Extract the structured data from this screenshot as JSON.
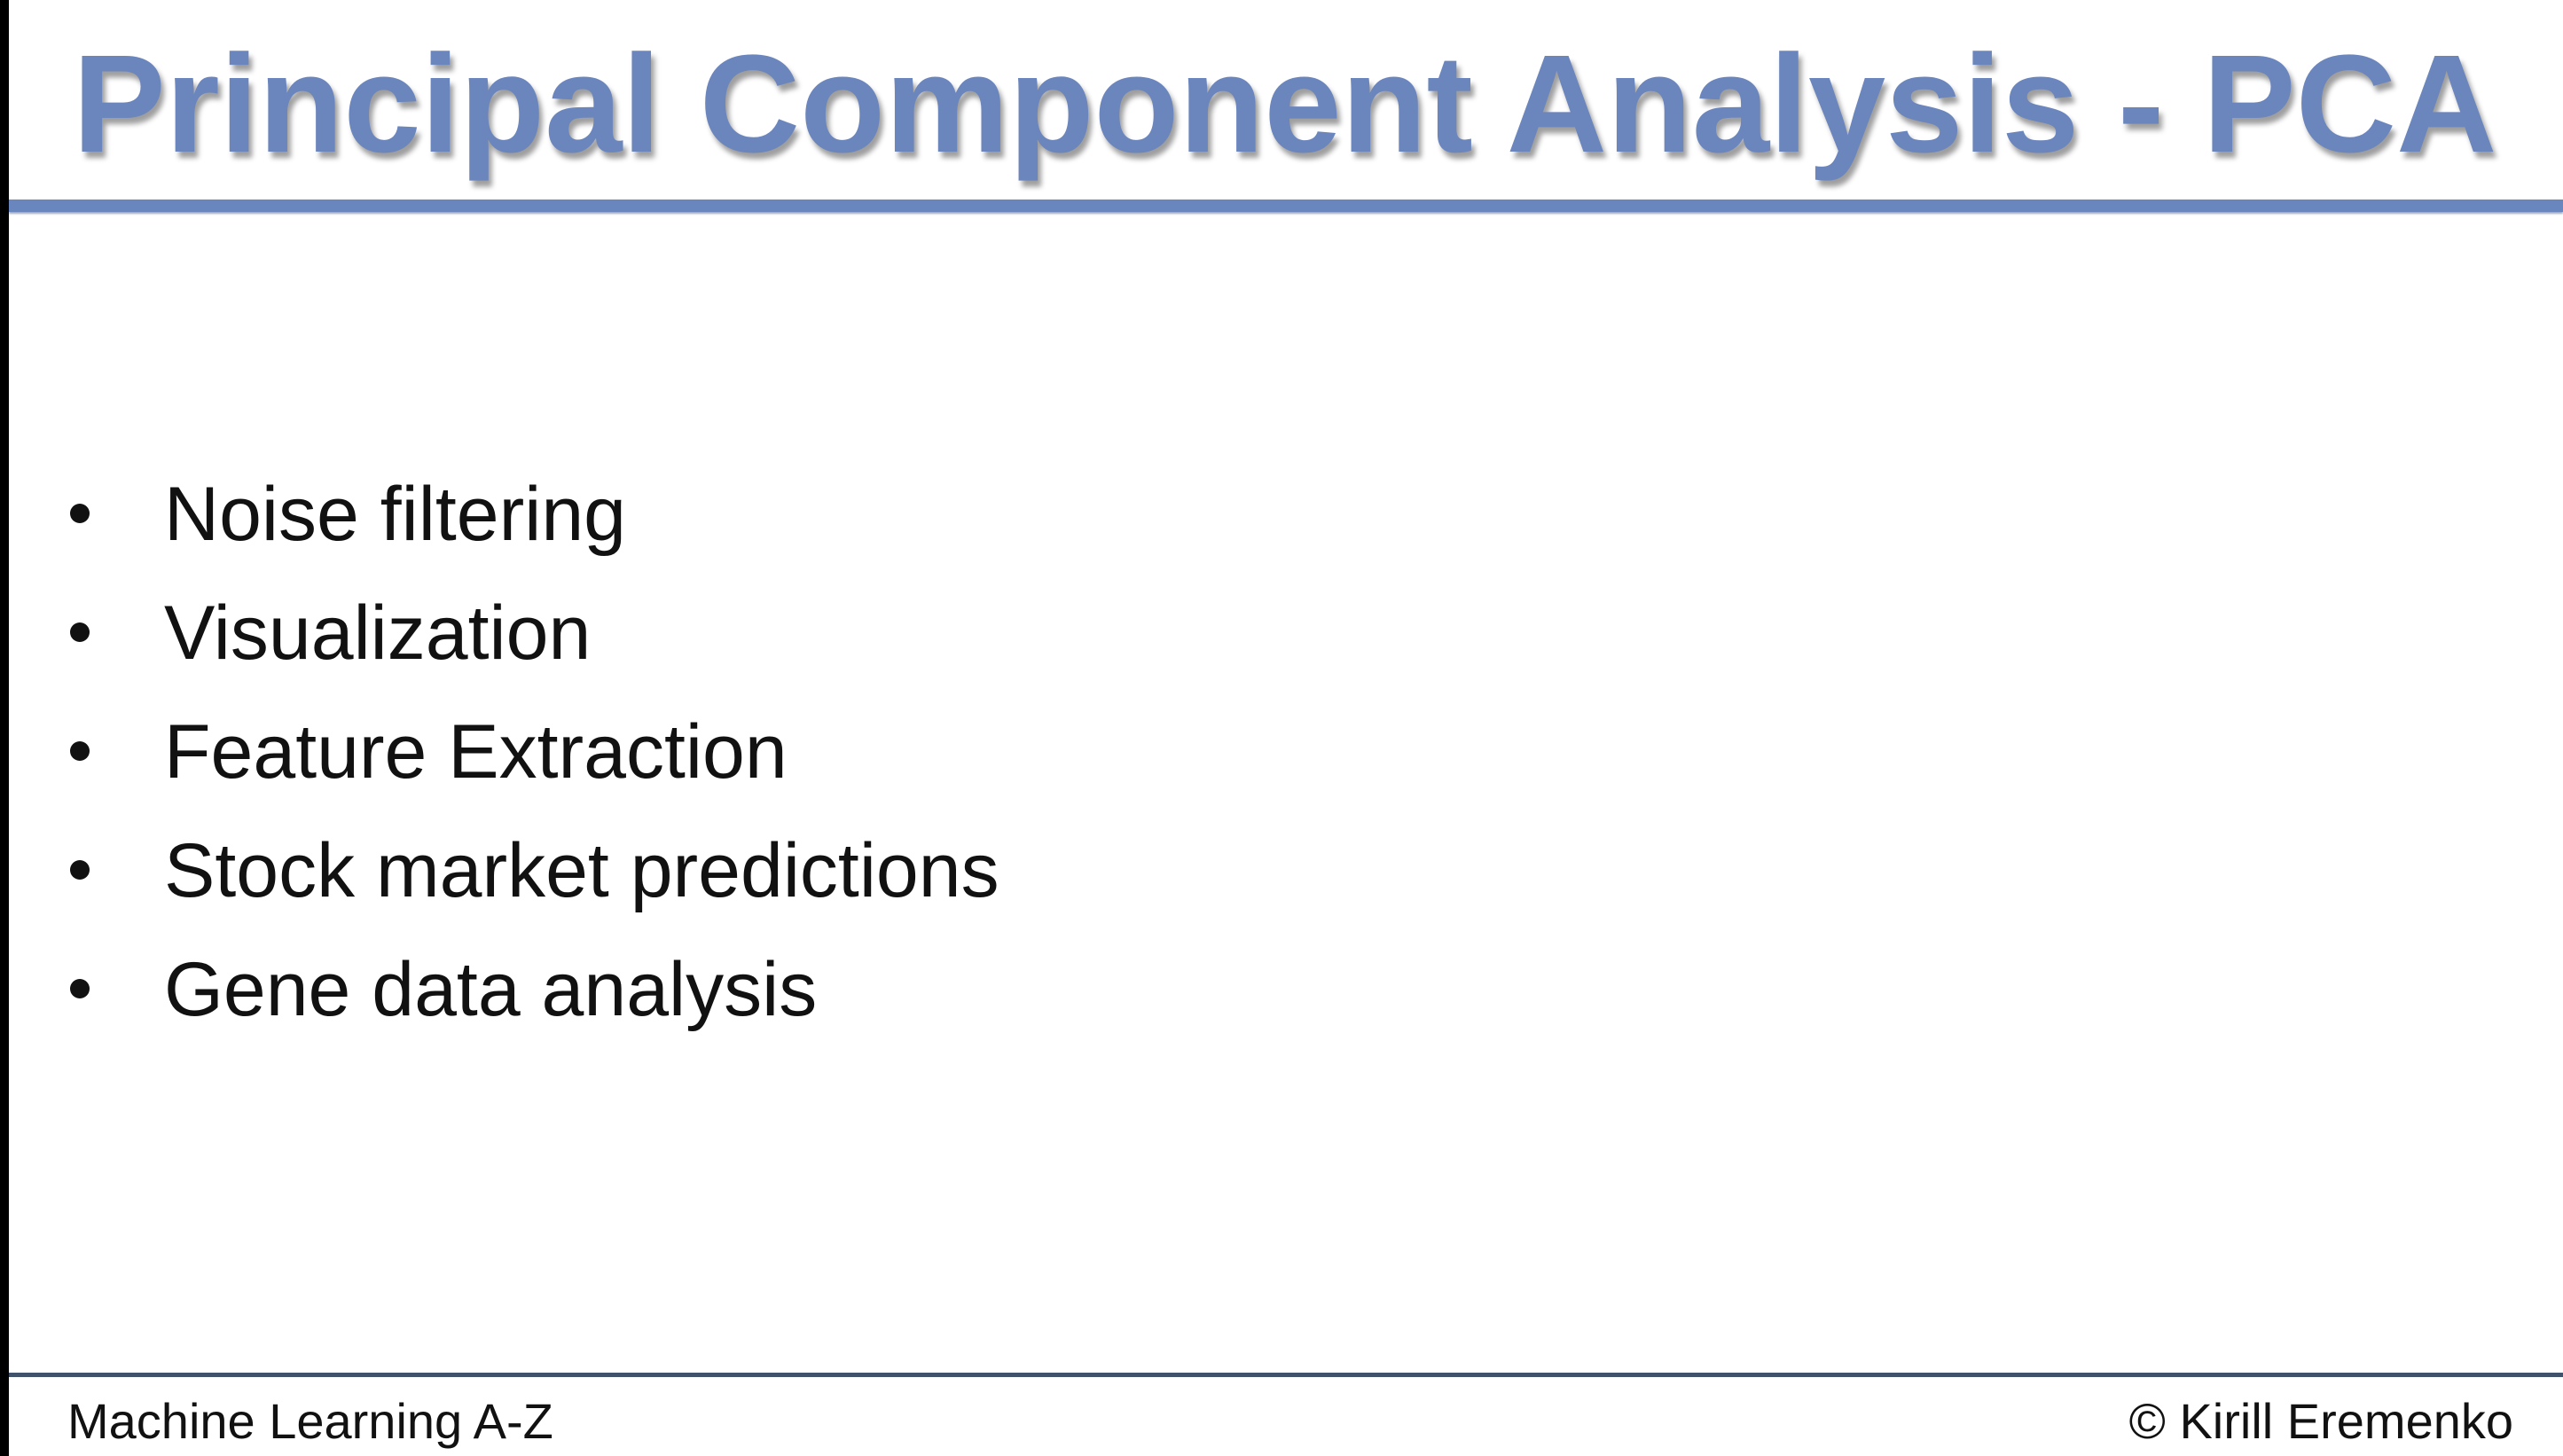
{
  "slide": {
    "title": "Principal Component Analysis - PCA",
    "bullets": [
      "Noise filtering",
      "Visualization",
      "Feature Extraction",
      "Stock market predictions",
      "Gene data analysis"
    ],
    "footer": {
      "course": "Machine Learning A-Z",
      "copyright": "© Kirill Eremenko"
    }
  },
  "colors": {
    "title": "#6b85bd",
    "accent_rule": "#6a86bf",
    "footer_rule": "#3f526a",
    "text": "#111111",
    "background": "#ffffff",
    "frame": "#000000"
  }
}
